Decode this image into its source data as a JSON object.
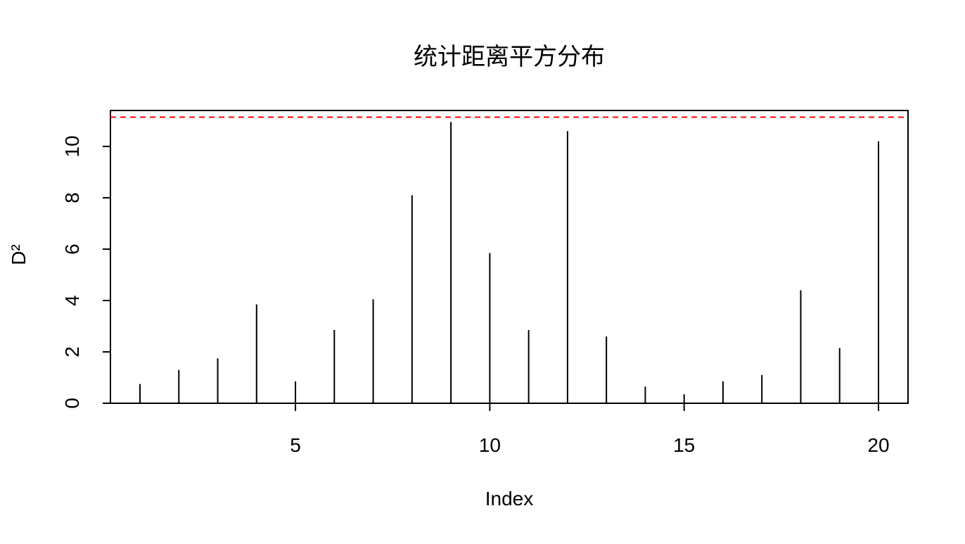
{
  "chart_data": {
    "type": "bar",
    "style": "vertical-lines",
    "title": "统计距离平方分布",
    "xlabel": "Index",
    "ylabel": "D²",
    "x": [
      1,
      2,
      3,
      4,
      5,
      6,
      7,
      8,
      9,
      10,
      11,
      12,
      13,
      14,
      15,
      16,
      17,
      18,
      19,
      20
    ],
    "values": [
      0.75,
      1.3,
      1.75,
      3.85,
      0.85,
      2.85,
      4.05,
      8.1,
      10.95,
      5.85,
      2.85,
      10.6,
      2.6,
      0.65,
      0.35,
      0.85,
      1.1,
      4.4,
      2.15,
      10.2
    ],
    "xlim": [
      0.24,
      20.76
    ],
    "ylim": [
      0,
      11.4
    ],
    "xticks": [
      5,
      10,
      15,
      20
    ],
    "yticks": [
      0,
      2,
      4,
      6,
      8,
      10
    ],
    "reference_line": {
      "y": 11.14,
      "color": "#ff0000",
      "style": "dashed"
    },
    "line_color": "#000000",
    "grid": false
  }
}
